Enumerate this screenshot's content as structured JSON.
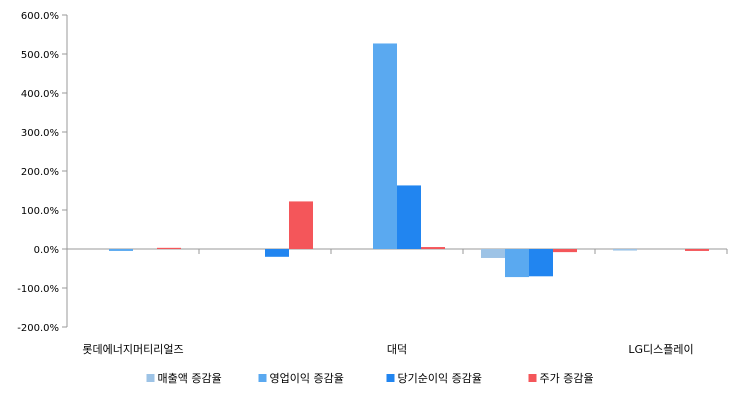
{
  "chart_data": {
    "type": "bar",
    "categories": [
      "롯데에너지머티리얼즈",
      "",
      "대덕",
      "",
      "LG디스플레이"
    ],
    "ylim": [
      -200,
      600
    ],
    "y_ticks": [
      -200,
      -100,
      0,
      100,
      200,
      300,
      400,
      500,
      600
    ],
    "y_tick_labels": [
      "-200.0%",
      "-100.0%",
      "0.0%",
      "100.0%",
      "200.0%",
      "300.0%",
      "400.0%",
      "500.0%",
      "600.0%"
    ],
    "grid": false,
    "legend_position": "bottom",
    "series": [
      {
        "name": "매출액 증감율",
        "color": "#9dc3e6",
        "values": [
          0,
          0,
          0,
          -23,
          -4
        ]
      },
      {
        "name": "영업이익 증감율",
        "color": "#5aa9f0",
        "values": [
          -5,
          0,
          527,
          -72,
          0
        ]
      },
      {
        "name": "당기순이익 증감율",
        "color": "#2185f0",
        "values": [
          0,
          -20,
          163,
          -70,
          0
        ]
      },
      {
        "name": "주가 증감율",
        "color": "#f4565a",
        "values": [
          3,
          122,
          5,
          -8,
          -5
        ]
      }
    ]
  }
}
